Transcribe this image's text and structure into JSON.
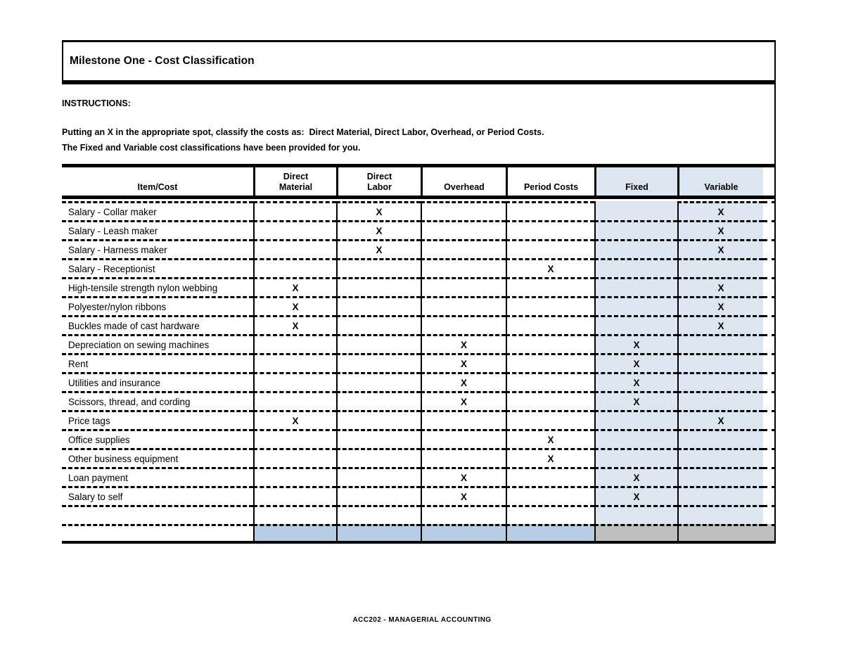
{
  "page": {
    "title": "Milestone One - Cost Classification",
    "footer": "ACC202 - MANAGERIAL ACCOUNTING",
    "background": "#ffffff"
  },
  "instructions": {
    "heading": "INSTRUCTIONS:",
    "line1": "Putting an X in the appropriate spot, classify the costs as:  Direct Material, Direct Labor, Overhead, or Period Costs.",
    "line2": "The Fixed and Variable cost classifications have been provided for you."
  },
  "table": {
    "mark_symbol": "X",
    "columns": [
      {
        "key": "item",
        "label": "Item/Cost"
      },
      {
        "key": "dm",
        "label": "Direct\nMaterial"
      },
      {
        "key": "dl",
        "label": "Direct\nLabor"
      },
      {
        "key": "oh",
        "label": "Overhead"
      },
      {
        "key": "pc",
        "label": "Period Costs"
      },
      {
        "key": "fx",
        "label": "Fixed"
      },
      {
        "key": "vr",
        "label": "Variable"
      }
    ],
    "rows": [
      {
        "label": "Salary - Collar maker",
        "marks": [
          "dl",
          "vr"
        ]
      },
      {
        "label": "Salary - Leash maker",
        "marks": [
          "dl",
          "vr"
        ]
      },
      {
        "label": "Salary - Harness maker",
        "marks": [
          "dl",
          "vr"
        ]
      },
      {
        "label": "Salary - Receptionist",
        "marks": [
          "pc"
        ]
      },
      {
        "label": "High-tensile strength nylon webbing",
        "marks": [
          "dm",
          "vr"
        ]
      },
      {
        "label": "Polyester/nylon ribbons",
        "marks": [
          "dm",
          "vr"
        ]
      },
      {
        "label": "Buckles made of cast hardware",
        "marks": [
          "dm",
          "vr"
        ]
      },
      {
        "label": "Depreciation on sewing machines",
        "marks": [
          "oh",
          "fx"
        ]
      },
      {
        "label": "Rent",
        "marks": [
          "oh",
          "fx"
        ]
      },
      {
        "label": "Utilities and insurance",
        "marks": [
          "oh",
          "fx"
        ]
      },
      {
        "label": "Scissors, thread, and cording",
        "marks": [
          "oh",
          "fx"
        ]
      },
      {
        "label": "Price tags",
        "marks": [
          "dm",
          "vr"
        ]
      },
      {
        "label": "Office supplies",
        "marks": [
          "pc"
        ]
      },
      {
        "label": "Other business equipment",
        "marks": [
          "pc"
        ]
      },
      {
        "label": "Loan payment",
        "marks": [
          "oh",
          "fx"
        ]
      },
      {
        "label": "Salary to self",
        "marks": [
          "oh",
          "fx"
        ]
      }
    ],
    "trailing_empty_row": true,
    "colors": {
      "fixed_variable_column_fill": "#DCE6F1",
      "legend_row_blue_fill": "#B8CCE4",
      "legend_row_gray_fill": "#BFBFBF"
    }
  }
}
